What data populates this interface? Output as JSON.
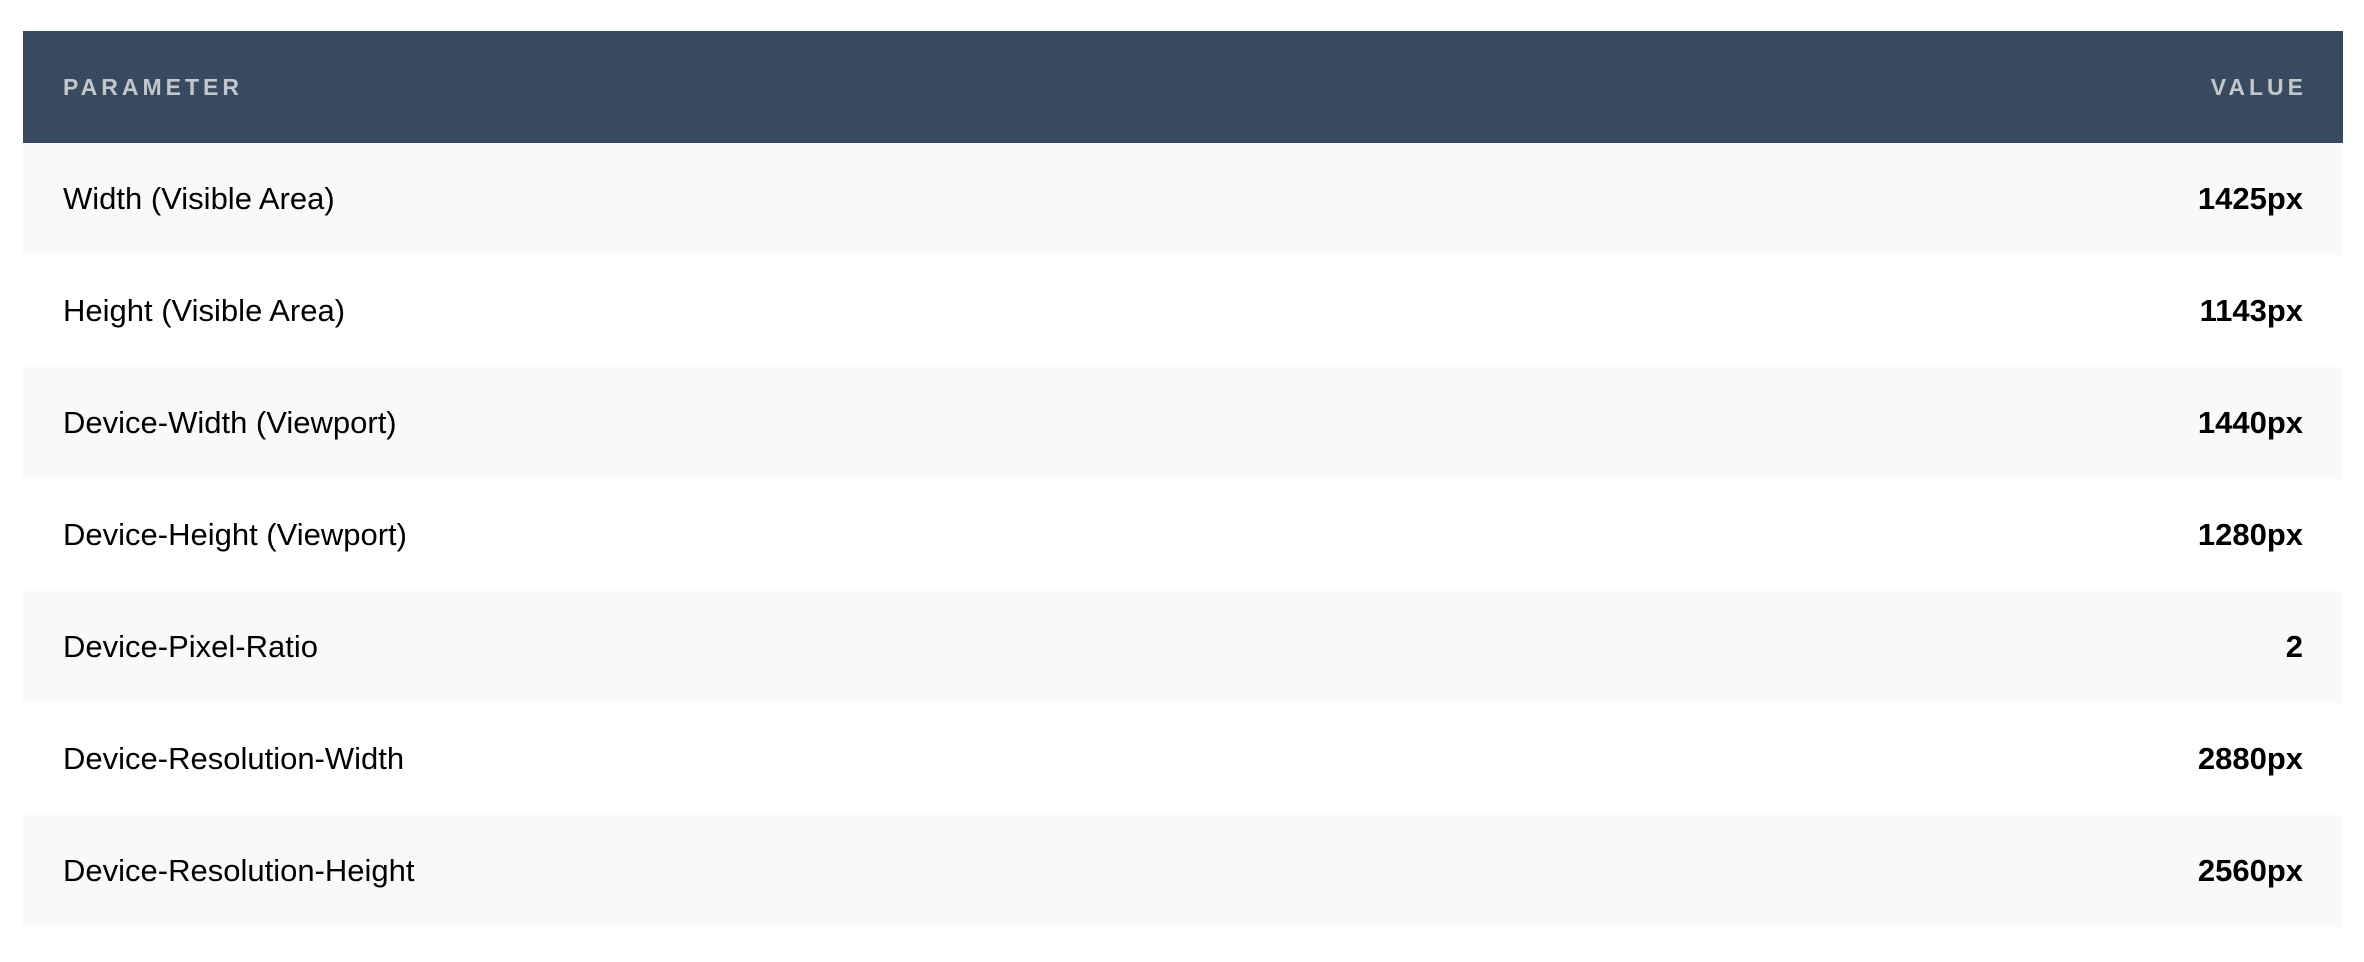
{
  "table": {
    "headers": {
      "parameter": "PARAMETER",
      "value": "VALUE"
    },
    "rows": [
      {
        "parameter": "Width (Visible Area)",
        "value": "1425px"
      },
      {
        "parameter": "Height (Visible Area)",
        "value": "1143px"
      },
      {
        "parameter": "Device-Width (Viewport)",
        "value": "1440px"
      },
      {
        "parameter": "Device-Height (Viewport)",
        "value": "1280px"
      },
      {
        "parameter": "Device-Pixel-Ratio",
        "value": "2"
      },
      {
        "parameter": "Device-Resolution-Width",
        "value": "2880px"
      },
      {
        "parameter": "Device-Resolution-Height",
        "value": "2560px"
      }
    ]
  },
  "colors": {
    "header_bg": "#374a5f",
    "header_text": "#c3c7cc",
    "row_alt": "#f9f9f9"
  }
}
